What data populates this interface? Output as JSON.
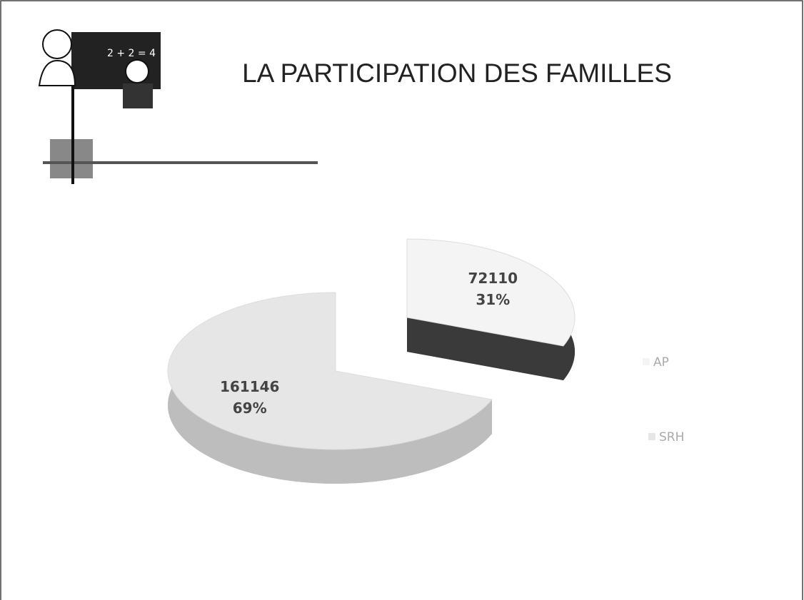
{
  "chart_data": {
    "type": "pie",
    "title": "LA PARTICIPATION DES FAMILLES",
    "categories": [
      "AP",
      "SRH"
    ],
    "values": [
      72110,
      161146
    ],
    "percent_labels": [
      "31%",
      "69%"
    ],
    "colors": [
      "#f4f4f4",
      "#e6e6e6"
    ],
    "side_colors": [
      "#3a3a3a",
      "#bdbdbd"
    ],
    "legend": "right"
  }
}
